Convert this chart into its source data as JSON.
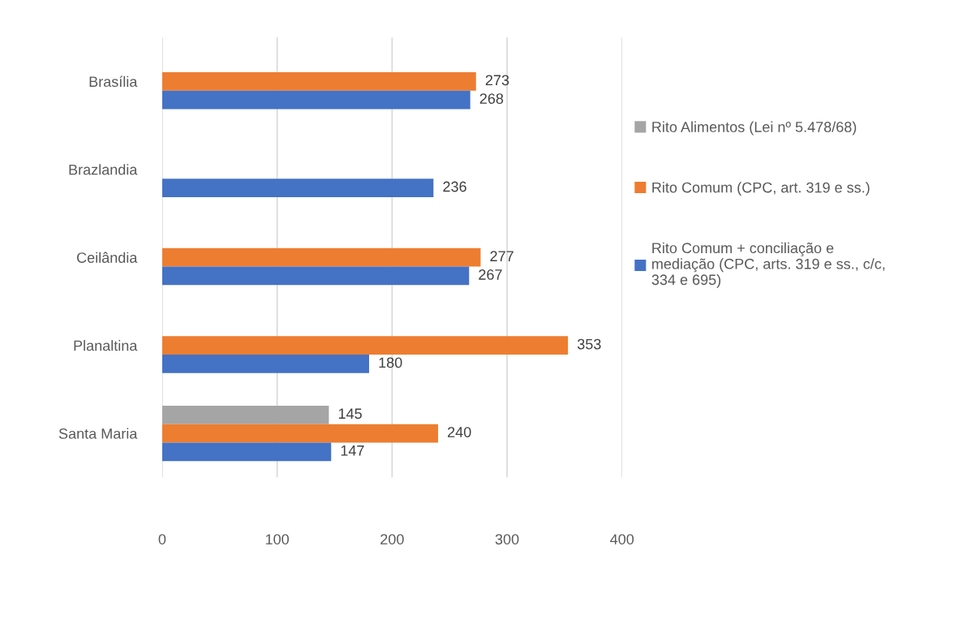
{
  "chart_data": {
    "type": "bar",
    "orientation": "horizontal",
    "categories": [
      "Brasília",
      "Brazlandia",
      "Ceilândia",
      "Planaltina",
      "Santa Maria"
    ],
    "series": [
      {
        "name": "Rito Alimentos (Lei nº 5.478/68)",
        "color": "#a5a5a5",
        "values": [
          null,
          null,
          null,
          null,
          145
        ]
      },
      {
        "name": "Rito Comum (CPC, art. 319 e ss.)",
        "color": "#ed7d31",
        "values": [
          273,
          null,
          277,
          353,
          240
        ]
      },
      {
        "name": "Rito Comum + conciliação e\nmediação (CPC, arts. 319 e ss., c/c,\n334 e 695)",
        "color": "#4472c4",
        "values": [
          268,
          236,
          267,
          180,
          147
        ]
      }
    ],
    "xlim": [
      0,
      400
    ],
    "xticks": [
      0,
      100,
      200,
      300,
      400
    ],
    "grid": "x",
    "legend": "right",
    "data_labels": true
  }
}
